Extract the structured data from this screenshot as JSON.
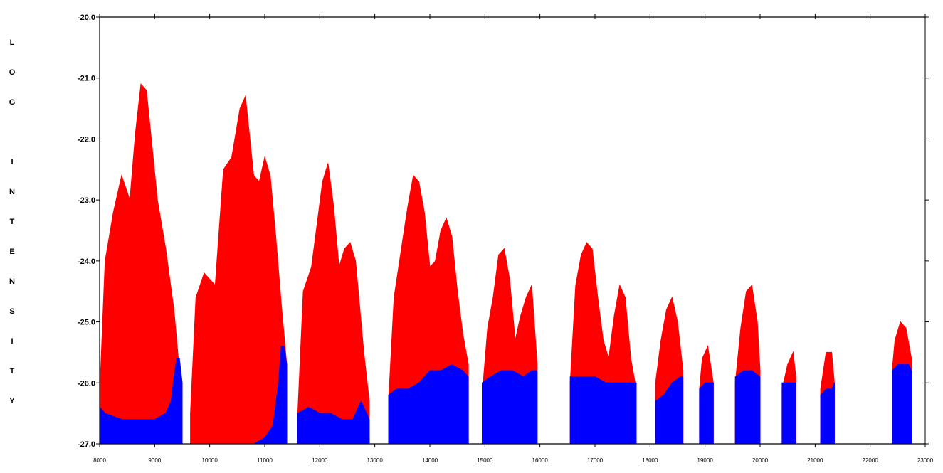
{
  "chart_data": {
    "type": "area",
    "title": "",
    "xlabel": "",
    "ylabel": "LOG INTENSITY",
    "ylabel_letters": [
      "L",
      "O",
      "G",
      "",
      "I",
      "N",
      "T",
      "E",
      "N",
      "S",
      "I",
      "T",
      "Y"
    ],
    "xlim": [
      8000,
      23000
    ],
    "ylim": [
      -27.0,
      -20.0
    ],
    "x_ticks": [
      "8000",
      "9000",
      "10000",
      "11000",
      "12000",
      "13000",
      "14000",
      "15000",
      "16000",
      "17000",
      "18000",
      "19000",
      "20000",
      "21000",
      "22000",
      "23000"
    ],
    "y_ticks": [
      "-20.0",
      "-21.0",
      "-22.0",
      "-23.0",
      "-24.0",
      "-25.0",
      "-26.0",
      "-27.0"
    ],
    "grid": false,
    "colors": {
      "upper": "#ff0000",
      "lower": "#0000ff",
      "axis": "#000000"
    },
    "series": [
      {
        "color": "#ff0000",
        "segments": [
          {
            "x": [
              8000,
              8100,
              8250,
              8400,
              8550,
              8650,
              8750,
              8850,
              8950,
              9050,
              9200,
              9350,
              9450,
              9500
            ],
            "y": [
              -26.2,
              -24.0,
              -23.2,
              -22.6,
              -23.0,
              -21.9,
              -21.1,
              -21.2,
              -22.1,
              -23.0,
              -23.8,
              -24.8,
              -25.8,
              -26.3
            ]
          },
          {
            "x": [
              9650,
              9750,
              9900,
              10100,
              10250,
              10400,
              10550,
              10650,
              10800,
              10900,
              11000,
              11100,
              11200,
              11300,
              11400
            ],
            "y": [
              -26.5,
              -24.6,
              -24.2,
              -24.4,
              -22.5,
              -22.3,
              -21.5,
              -21.3,
              -22.6,
              -22.7,
              -22.3,
              -22.6,
              -23.6,
              -24.7,
              -25.7
            ]
          },
          {
            "x": [
              11600,
              11700,
              11850,
              11950,
              12050,
              12150,
              12250,
              12350,
              12450,
              12550,
              12650,
              12800,
              12900
            ],
            "y": [
              -26.5,
              -24.5,
              -24.1,
              -23.4,
              -22.7,
              -22.4,
              -23.1,
              -24.1,
              -23.8,
              -23.7,
              -24.0,
              -25.5,
              -26.3
            ]
          },
          {
            "x": [
              13250,
              13350,
              13500,
              13600,
              13700,
              13800,
              13900,
              14000,
              14100,
              14200,
              14300,
              14400,
              14500,
              14600,
              14700
            ],
            "y": [
              -26.3,
              -24.6,
              -23.7,
              -23.1,
              -22.6,
              -22.7,
              -23.2,
              -24.1,
              -24.0,
              -23.5,
              -23.3,
              -23.6,
              -24.5,
              -25.2,
              -25.7
            ]
          },
          {
            "x": [
              14950,
              15050,
              15150,
              15250,
              15350,
              15450,
              15550,
              15650,
              15750,
              15850,
              15950
            ],
            "y": [
              -26.2,
              -25.1,
              -24.6,
              -23.9,
              -23.8,
              -24.3,
              -25.3,
              -24.9,
              -24.6,
              -24.4,
              -25.7
            ]
          },
          {
            "x": [
              16550,
              16650,
              16750,
              16850,
              16950,
              17050,
              17150,
              17250,
              17350,
              17450,
              17550,
              17650,
              17750
            ],
            "y": [
              -26.0,
              -24.4,
              -23.9,
              -23.7,
              -23.8,
              -24.6,
              -25.3,
              -25.6,
              -24.9,
              -24.4,
              -24.6,
              -25.6,
              -26.1
            ]
          },
          {
            "x": [
              18100,
              18200,
              18300,
              18400,
              18500,
              18600
            ],
            "y": [
              -26.0,
              -25.3,
              -24.8,
              -24.6,
              -25.0,
              -25.8
            ]
          },
          {
            "x": [
              18900,
              18950,
              19050,
              19150
            ],
            "y": [
              -26.1,
              -25.6,
              -25.4,
              -26.0
            ]
          },
          {
            "x": [
              19550,
              19650,
              19750,
              19850,
              19950,
              20000
            ],
            "y": [
              -26.0,
              -25.1,
              -24.5,
              -24.4,
              -25.0,
              -25.8
            ]
          },
          {
            "x": [
              20400,
              20500,
              20600,
              20650
            ],
            "y": [
              -26.1,
              -25.7,
              -25.5,
              -25.9
            ]
          },
          {
            "x": [
              21100,
              21200,
              21300,
              21350
            ],
            "y": [
              -26.1,
              -25.5,
              -25.5,
              -26.0
            ]
          },
          {
            "x": [
              22400,
              22450,
              22550,
              22650,
              22750
            ],
            "y": [
              -25.8,
              -25.3,
              -25.0,
              -25.1,
              -25.6
            ]
          }
        ]
      },
      {
        "color": "#0000ff",
        "segments": [
          {
            "x": [
              8000,
              8100,
              8400,
              8700,
              9000,
              9200,
              9300,
              9350,
              9400,
              9450,
              9500
            ],
            "y": [
              -26.4,
              -26.5,
              -26.6,
              -26.6,
              -26.6,
              -26.5,
              -26.3,
              -25.9,
              -25.6,
              -25.6,
              -26.0
            ]
          },
          {
            "x": [
              9650,
              9900,
              10200,
              10500,
              10800,
              11000,
              11150,
              11250,
              11300,
              11350,
              11400
            ],
            "y": [
              -27.0,
              -27.0,
              -27.0,
              -27.0,
              -27.0,
              -26.9,
              -26.7,
              -26.0,
              -25.4,
              -25.4,
              -25.7
            ]
          },
          {
            "x": [
              11600,
              11800,
              12000,
              12200,
              12400,
              12600,
              12750,
              12900
            ],
            "y": [
              -26.5,
              -26.4,
              -26.5,
              -26.5,
              -26.6,
              -26.6,
              -26.3,
              -26.6
            ]
          },
          {
            "x": [
              13250,
              13400,
              13600,
              13800,
              14000,
              14200,
              14400,
              14600,
              14700
            ],
            "y": [
              -26.2,
              -26.1,
              -26.1,
              -26.0,
              -25.8,
              -25.8,
              -25.7,
              -25.8,
              -25.9
            ]
          },
          {
            "x": [
              14950,
              15100,
              15300,
              15500,
              15700,
              15850,
              15950
            ],
            "y": [
              -26.0,
              -25.9,
              -25.8,
              -25.8,
              -25.9,
              -25.8,
              -25.8
            ]
          },
          {
            "x": [
              16550,
              16800,
              17000,
              17200,
              17400,
              17600,
              17750
            ],
            "y": [
              -25.9,
              -25.9,
              -25.9,
              -26.0,
              -26.0,
              -26.0,
              -26.0
            ]
          },
          {
            "x": [
              18100,
              18250,
              18400,
              18550,
              18600
            ],
            "y": [
              -26.3,
              -26.2,
              -26.0,
              -25.9,
              -25.9
            ]
          },
          {
            "x": [
              18900,
              19000,
              19100,
              19150
            ],
            "y": [
              -26.1,
              -26.0,
              -26.0,
              -26.0
            ]
          },
          {
            "x": [
              19550,
              19700,
              19850,
              20000
            ],
            "y": [
              -25.9,
              -25.8,
              -25.8,
              -25.9
            ]
          },
          {
            "x": [
              20400,
              20500,
              20600,
              20650
            ],
            "y": [
              -26.0,
              -26.0,
              -26.0,
              -26.0
            ]
          },
          {
            "x": [
              21100,
              21200,
              21300,
              21350
            ],
            "y": [
              -26.2,
              -26.1,
              -26.1,
              -26.0
            ]
          },
          {
            "x": [
              22400,
              22500,
              22600,
              22700,
              22750
            ],
            "y": [
              -25.8,
              -25.7,
              -25.7,
              -25.7,
              -25.8
            ]
          }
        ]
      }
    ]
  }
}
